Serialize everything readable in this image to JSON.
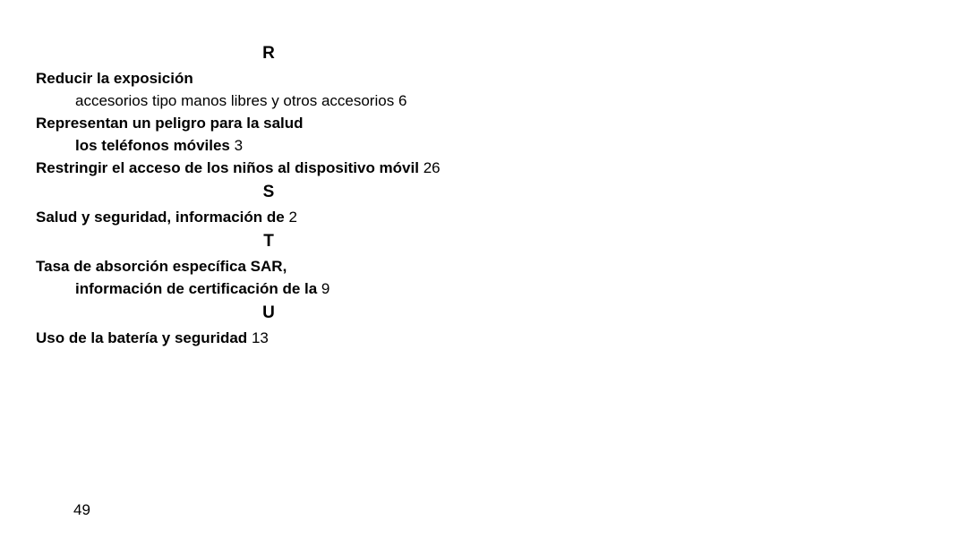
{
  "page_number": "49",
  "sections": {
    "R": {
      "letter": "R",
      "entries": {
        "reducir": {
          "title": "Reducir la exposición",
          "sub_text": "accesorios tipo manos libres y otros accesorios",
          "sub_page": "6"
        },
        "representan": {
          "title": "Representan un peligro para la salud",
          "sub_bold": "los teléfonos móviles",
          "sub_page": "3"
        },
        "restringir": {
          "title": "Restringir el acceso de los niños al dispositivo móvil",
          "page": "26"
        }
      }
    },
    "S": {
      "letter": "S",
      "entries": {
        "salud": {
          "title": "Salud y seguridad, información de",
          "page": "2"
        }
      }
    },
    "T": {
      "letter": "T",
      "entries": {
        "tasa": {
          "title": "Tasa de absorción específica SAR,",
          "sub_bold": "información de certificación de la",
          "sub_page": "9"
        }
      }
    },
    "U": {
      "letter": "U",
      "entries": {
        "uso": {
          "title": "Uso de la batería y seguridad",
          "page": "13"
        }
      }
    }
  }
}
